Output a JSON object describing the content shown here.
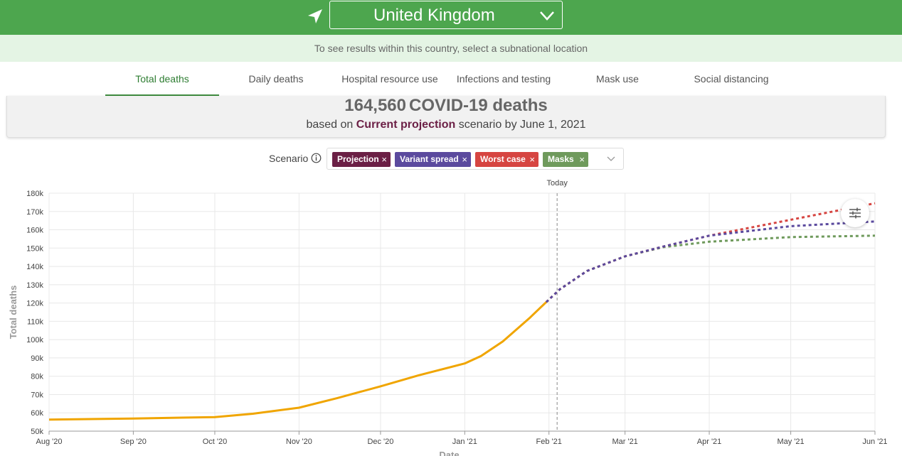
{
  "location": {
    "country": "United Kingdom",
    "hint": "To see results within this country, select a subnational location"
  },
  "tabs": [
    {
      "label": "Total deaths",
      "active": true
    },
    {
      "label": "Daily deaths"
    },
    {
      "label": "Hospital resource use"
    },
    {
      "label": "Infections and testing"
    },
    {
      "label": "Mask use"
    },
    {
      "label": "Social distancing"
    }
  ],
  "summary": {
    "count": "164,560",
    "count_label": "COVID-19 deaths",
    "based_on": "based on",
    "scenario": "Current projection",
    "scenario_suffix": "scenario by June 1, 2021"
  },
  "scenario_filter": {
    "label": "Scenario",
    "chips": [
      {
        "label": "Projection",
        "color": "#6b1f45"
      },
      {
        "label": "Variant spread",
        "color": "#5b4a9e"
      },
      {
        "label": "Worst case",
        "color": "#d64541"
      },
      {
        "label": "Masks",
        "color": "#6f9a5c"
      }
    ],
    "remove_glyph": "×"
  },
  "chart_data": {
    "type": "line",
    "ylabel": "Total deaths",
    "xlabel": "Date",
    "y_ticks": [
      "50k",
      "60k",
      "70k",
      "80k",
      "90k",
      "100k",
      "110k",
      "120k",
      "130k",
      "140k",
      "150k",
      "160k",
      "170k",
      "180k"
    ],
    "x_ticks": [
      "Aug '20",
      "Sep '20",
      "Oct '20",
      "Nov '20",
      "Dec '20",
      "Jan '21",
      "Feb '21",
      "Mar '21",
      "Apr '21",
      "May '21",
      "Jun '21"
    ],
    "ylim": [
      50000,
      180000
    ],
    "today_label": "Today",
    "today_date": "2021-02-04",
    "grid": true,
    "series": [
      {
        "kind": "observed",
        "color": "#f0a500",
        "points": [
          [
            "2020-08-01",
            56300
          ],
          [
            "2020-09-01",
            56900
          ],
          [
            "2020-10-01",
            57700
          ],
          [
            "2020-10-15",
            59500
          ],
          [
            "2020-11-01",
            62800
          ],
          [
            "2020-11-15",
            68000
          ],
          [
            "2020-12-01",
            74500
          ],
          [
            "2020-12-15",
            80500
          ],
          [
            "2021-01-01",
            87000
          ],
          [
            "2021-01-07",
            91000
          ],
          [
            "2021-01-15",
            99000
          ],
          [
            "2021-01-25",
            112000
          ],
          [
            "2021-01-31",
            120500
          ]
        ]
      },
      {
        "color": "#6f9a5c",
        "points": [
          [
            "2021-01-31",
            120500
          ],
          [
            "2021-02-05",
            127500
          ],
          [
            "2021-02-15",
            137500
          ],
          [
            "2021-03-01",
            145500
          ],
          [
            "2021-03-15",
            150500
          ],
          [
            "2021-04-01",
            153500
          ],
          [
            "2021-05-01",
            156000
          ],
          [
            "2021-06-01",
            156800
          ]
        ]
      },
      {
        "color": "#d64541",
        "points": [
          [
            "2021-01-31",
            120500
          ],
          [
            "2021-02-05",
            127500
          ],
          [
            "2021-02-15",
            137500
          ],
          [
            "2021-03-01",
            145500
          ],
          [
            "2021-03-15",
            150800
          ],
          [
            "2021-04-01",
            156800
          ],
          [
            "2021-05-01",
            165500
          ],
          [
            "2021-06-01",
            174500
          ]
        ]
      },
      {
        "color": "#5b4a9e",
        "points": [
          [
            "2021-01-31",
            120500
          ],
          [
            "2021-02-05",
            127500
          ],
          [
            "2021-02-15",
            137500
          ],
          [
            "2021-03-01",
            145500
          ],
          [
            "2021-03-15",
            150800
          ],
          [
            "2021-04-01",
            156800
          ],
          [
            "2021-05-01",
            162000
          ],
          [
            "2021-06-01",
            164560
          ]
        ]
      }
    ]
  },
  "icons": {
    "location": "location-arrow-icon",
    "dropdown": "chevron-down-icon",
    "info": "info-icon",
    "options": "sliders-icon"
  }
}
